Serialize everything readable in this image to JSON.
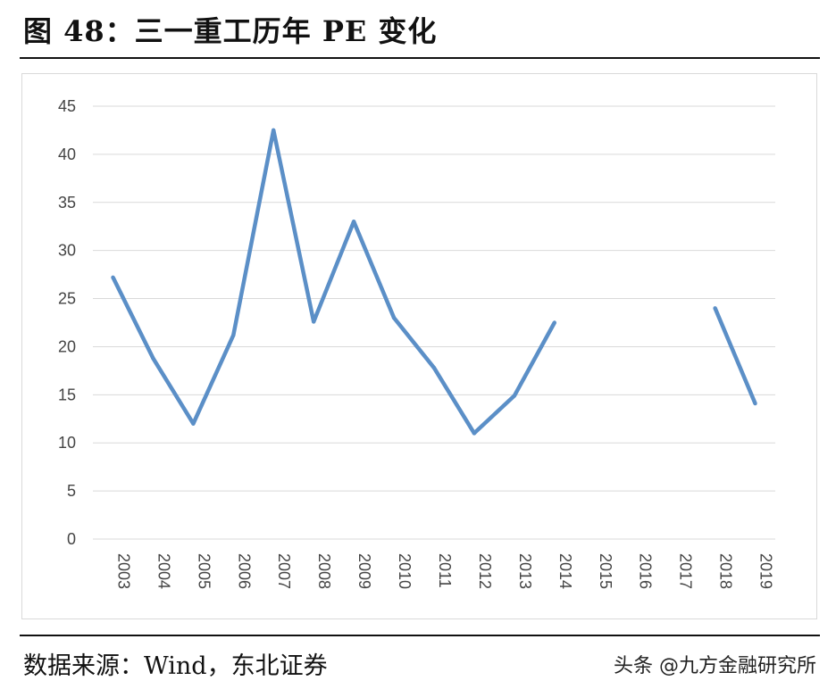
{
  "header": {
    "title": "图 48：三一重工历年 PE 变化"
  },
  "footer": {
    "source": "数据来源：Wind，东北证券",
    "watermark": "头条 @九方金融研究所"
  },
  "chart_data": {
    "type": "line",
    "categories": [
      "2003",
      "2004",
      "2005",
      "2006",
      "2007",
      "2008",
      "2009",
      "2010",
      "2011",
      "2012",
      "2013",
      "2014",
      "2015",
      "2016",
      "2017",
      "2018",
      "2019"
    ],
    "series": [
      {
        "values": [
          27.2,
          18.8,
          12.0,
          21.2,
          42.5,
          22.6,
          33.0,
          23.0,
          17.8,
          11.0,
          14.9,
          22.5,
          null,
          null,
          null,
          24.0,
          14.1
        ]
      }
    ],
    "yticks": [
      0,
      5,
      10,
      15,
      20,
      25,
      30,
      35,
      40,
      45
    ],
    "ylim": [
      0,
      45
    ],
    "grid": true,
    "colors": {
      "line": "#5b8fc7",
      "grid": "#d9d9d9",
      "tick_text": "#444444"
    }
  }
}
